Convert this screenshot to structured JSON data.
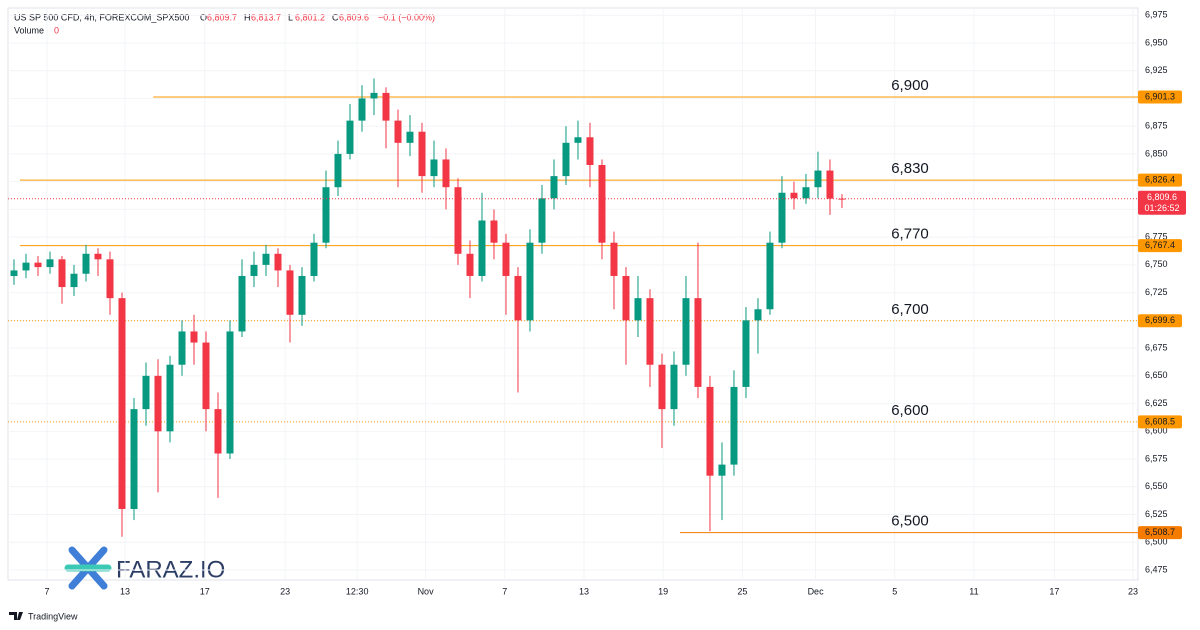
{
  "header": {
    "symbol": "US SP 500 CFD, 4h, FOREXCOM_SPX500",
    "ohlc": [
      {
        "key": "O",
        "value": "6,809.7"
      },
      {
        "key": "H",
        "value": "6,813.7"
      },
      {
        "key": "L",
        "value": "6,801.2"
      },
      {
        "key": "C",
        "value": "6,809.6"
      }
    ],
    "change": "−0.1 (−0.00%)",
    "volume_label": "Volume",
    "volume_value": "0"
  },
  "watermark": "FARAZ.IO",
  "footer": "TradingView",
  "chart_data": {
    "type": "candlestick",
    "up_color": "#089981",
    "down_color": "#f23645",
    "grid": true,
    "x": [
      0,
      1,
      2,
      3,
      4,
      5,
      6,
      7,
      8,
      9,
      10,
      11,
      12,
      13,
      14,
      15,
      16,
      17,
      18,
      19,
      20,
      21,
      22,
      23,
      24,
      25,
      26,
      27,
      28,
      29,
      30,
      31,
      32,
      33,
      34,
      35,
      36,
      37,
      38,
      39,
      40,
      41,
      42,
      43,
      44,
      45,
      46,
      47,
      48,
      49,
      50,
      51,
      52,
      53,
      54,
      55,
      56,
      57,
      58,
      59,
      60,
      61,
      62,
      63,
      64,
      65,
      66,
      67,
      68,
      69
    ],
    "open": [
      6740,
      6745,
      6752,
      6748,
      6755,
      6730,
      6742,
      6760,
      6755,
      6720,
      6530,
      6620,
      6650,
      6600,
      6660,
      6690,
      6680,
      6620,
      6580,
      6690,
      6740,
      6750,
      6760,
      6745,
      6705,
      6740,
      6770,
      6820,
      6850,
      6880,
      6900,
      6905,
      6880,
      6860,
      6870,
      6830,
      6845,
      6820,
      6760,
      6740,
      6790,
      6770,
      6740,
      6700,
      6770,
      6810,
      6830,
      6860,
      6865,
      6840,
      6770,
      6740,
      6700,
      6720,
      6660,
      6620,
      6660,
      6720,
      6640,
      6560,
      6570,
      6640,
      6700,
      6710,
      6770,
      6815,
      6810,
      6820,
      6835,
      6809.7
    ],
    "high": [
      6755,
      6760,
      6758,
      6762,
      6758,
      6750,
      6768,
      6765,
      6762,
      6725,
      6630,
      6662,
      6665,
      6668,
      6700,
      6705,
      6690,
      6635,
      6700,
      6755,
      6762,
      6768,
      6765,
      6750,
      6748,
      6778,
      6835,
      6862,
      6895,
      6912,
      6918,
      6910,
      6890,
      6885,
      6878,
      6862,
      6855,
      6828,
      6772,
      6815,
      6800,
      6778,
      6748,
      6782,
      6822,
      6845,
      6875,
      6880,
      6878,
      6845,
      6780,
      6748,
      6740,
      6728,
      6670,
      6672,
      6740,
      6770,
      6650,
      6590,
      6655,
      6712,
      6720,
      6780,
      6830,
      6825,
      6832,
      6852,
      6845,
      6813.7
    ],
    "low": [
      6732,
      6738,
      6740,
      6742,
      6715,
      6722,
      6735,
      6740,
      6705,
      6505,
      6520,
      6605,
      6545,
      6590,
      6650,
      6660,
      6600,
      6540,
      6575,
      6685,
      6730,
      6740,
      6730,
      6680,
      6695,
      6735,
      6765,
      6812,
      6845,
      6870,
      6885,
      6855,
      6820,
      6848,
      6815,
      6820,
      6800,
      6750,
      6720,
      6735,
      6755,
      6705,
      6635,
      6690,
      6760,
      6800,
      6822,
      6845,
      6820,
      6755,
      6710,
      6660,
      6685,
      6640,
      6585,
      6605,
      6650,
      6630,
      6510,
      6520,
      6560,
      6630,
      6670,
      6705,
      6765,
      6800,
      6805,
      6810,
      6795,
      6801.2
    ],
    "close": [
      6745,
      6752,
      6748,
      6755,
      6730,
      6742,
      6760,
      6755,
      6720,
      6530,
      6620,
      6650,
      6600,
      6660,
      6690,
      6680,
      6620,
      6580,
      6690,
      6740,
      6750,
      6760,
      6745,
      6705,
      6740,
      6770,
      6820,
      6850,
      6880,
      6900,
      6905,
      6880,
      6860,
      6870,
      6830,
      6845,
      6820,
      6760,
      6740,
      6790,
      6770,
      6740,
      6700,
      6770,
      6810,
      6830,
      6860,
      6865,
      6840,
      6770,
      6740,
      6700,
      6720,
      6660,
      6620,
      6660,
      6720,
      6640,
      6560,
      6570,
      6640,
      6700,
      6710,
      6770,
      6815,
      6810,
      6820,
      6835,
      6809.7,
      6809.6
    ],
    "xlim": [
      -0.5,
      93.67
    ],
    "xticks": [
      {
        "value": 2.75,
        "label": "7"
      },
      {
        "value": 9.25,
        "label": "13"
      },
      {
        "value": 15.9,
        "label": "17"
      },
      {
        "value": 22.6,
        "label": "23"
      },
      {
        "value": 28.6,
        "label": "12:30"
      },
      {
        "value": 34.3,
        "label": "Nov"
      },
      {
        "value": 40.9,
        "label": "7"
      },
      {
        "value": 47.5,
        "label": "13"
      },
      {
        "value": 54.1,
        "label": "19"
      },
      {
        "value": 60.7,
        "label": "25"
      },
      {
        "value": 66.8,
        "label": "Dec"
      },
      {
        "value": 73.4,
        "label": "5"
      },
      {
        "value": 80,
        "label": "11"
      },
      {
        "value": 86.7,
        "label": "17"
      },
      {
        "value": 93.25,
        "label": "23"
      }
    ],
    "ylim": [
      6466,
      6981.5
    ],
    "yticks": [
      {
        "value": 6475,
        "label": "6,475"
      },
      {
        "value": 6500,
        "label": "6,500"
      },
      {
        "value": 6525,
        "label": "6,525"
      },
      {
        "value": 6550,
        "label": "6,550"
      },
      {
        "value": 6575,
        "label": "6,575"
      },
      {
        "value": 6600,
        "label": "6,600"
      },
      {
        "value": 6625,
        "label": "6,625"
      },
      {
        "value": 6650,
        "label": "6,650"
      },
      {
        "value": 6675,
        "label": "6,675"
      },
      {
        "value": 6700,
        "label": "6,700"
      },
      {
        "value": 6725,
        "label": "6,725"
      },
      {
        "value": 6750,
        "label": "6,750"
      },
      {
        "value": 6775,
        "label": "6,775"
      },
      {
        "value": 6800,
        "label": "6,800"
      },
      {
        "value": 6825,
        "label": "6,825"
      },
      {
        "value": 6850,
        "label": "6,850"
      },
      {
        "value": 6875,
        "label": "6,875"
      },
      {
        "value": 6900,
        "label": "6,900"
      },
      {
        "value": 6925,
        "label": "6,925"
      },
      {
        "value": 6950,
        "label": "6,950"
      },
      {
        "value": 6975,
        "label": "6,975"
      }
    ],
    "levels": [
      {
        "value": 6901.3,
        "value_label": "6,901.3",
        "text": "6,900",
        "x_start": 11.6,
        "style": "solid",
        "color": "#ff9800"
      },
      {
        "value": 6826.4,
        "value_label": "6,826.4",
        "text": "6,830",
        "x_start": 0.5,
        "style": "solid",
        "color": "#ff9800"
      },
      {
        "value": 6767.4,
        "value_label": "6,767.4",
        "text": "6,770",
        "x_start": 0.5,
        "style": "solid",
        "color": "#ff9800"
      },
      {
        "value": 6699.6,
        "value_label": "6,699.6",
        "text": "6,700",
        "x_start": -0.5,
        "style": "dotted",
        "color": "#ff9800"
      },
      {
        "value": 6608.5,
        "value_label": "6,608.5",
        "text": "6,600",
        "x_start": -0.5,
        "style": "dotted",
        "color": "#ff9800"
      },
      {
        "value": 6508.7,
        "value_label": "6,508.7",
        "text": "6,500",
        "x_start": 55.5,
        "style": "solid",
        "color": "#f57c00"
      }
    ],
    "last_price": {
      "value": 6809.6,
      "label": "6,809.6",
      "countdown": "01:26:52",
      "color": "#f23645"
    }
  }
}
